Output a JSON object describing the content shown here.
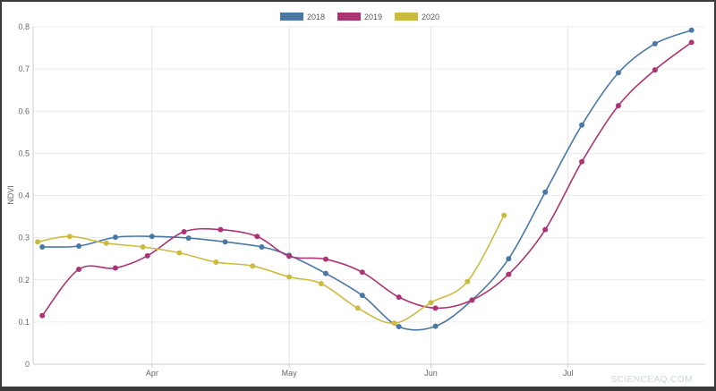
{
  "chart_data": {
    "type": "line",
    "xlabel": "",
    "ylabel": "NDVI",
    "ylim": [
      0,
      0.8
    ],
    "yticks": [
      "0",
      "0.1",
      "0.2",
      "0.3",
      "0.4",
      "0.5",
      "0.6",
      "0.7",
      "0.8"
    ],
    "x_domain": [
      "2020-03-06",
      "2020-07-31"
    ],
    "month_ticks": [
      {
        "label": "Apr",
        "date": "2020-04-01"
      },
      {
        "label": "May",
        "date": "2020-05-01"
      },
      {
        "label": "Jun",
        "date": "2020-06-01"
      },
      {
        "label": "Jul",
        "date": "2020-07-01"
      }
    ],
    "grid": true,
    "legend_position": "top-center",
    "series": [
      {
        "name": "2018",
        "color": "#4a78a5",
        "points": [
          {
            "x": "2020-03-08",
            "y": 0.278
          },
          {
            "x": "2020-03-16",
            "y": 0.28
          },
          {
            "x": "2020-03-24",
            "y": 0.301
          },
          {
            "x": "2020-04-01",
            "y": 0.303
          },
          {
            "x": "2020-04-09",
            "y": 0.299
          },
          {
            "x": "2020-04-17",
            "y": 0.29
          },
          {
            "x": "2020-04-25",
            "y": 0.278
          },
          {
            "x": "2020-05-01",
            "y": 0.258
          },
          {
            "x": "2020-05-09",
            "y": 0.215
          },
          {
            "x": "2020-05-17",
            "y": 0.163
          },
          {
            "x": "2020-05-25",
            "y": 0.089
          },
          {
            "x": "2020-06-02",
            "y": 0.09
          },
          {
            "x": "2020-06-10",
            "y": 0.152
          },
          {
            "x": "2020-06-18",
            "y": 0.25
          },
          {
            "x": "2020-06-26",
            "y": 0.408
          },
          {
            "x": "2020-07-04",
            "y": 0.567
          },
          {
            "x": "2020-07-12",
            "y": 0.691
          },
          {
            "x": "2020-07-20",
            "y": 0.76
          },
          {
            "x": "2020-07-28",
            "y": 0.792
          }
        ]
      },
      {
        "name": "2019",
        "color": "#ac3474",
        "points": [
          {
            "x": "2020-03-08",
            "y": 0.115
          },
          {
            "x": "2020-03-16",
            "y": 0.225
          },
          {
            "x": "2020-03-24",
            "y": 0.228
          },
          {
            "x": "2020-03-31",
            "y": 0.257
          },
          {
            "x": "2020-04-08",
            "y": 0.314
          },
          {
            "x": "2020-04-16",
            "y": 0.319
          },
          {
            "x": "2020-04-24",
            "y": 0.303
          },
          {
            "x": "2020-05-01",
            "y": 0.256
          },
          {
            "x": "2020-05-09",
            "y": 0.249
          },
          {
            "x": "2020-05-17",
            "y": 0.218
          },
          {
            "x": "2020-05-25",
            "y": 0.159
          },
          {
            "x": "2020-06-02",
            "y": 0.133
          },
          {
            "x": "2020-06-10",
            "y": 0.152
          },
          {
            "x": "2020-06-18",
            "y": 0.213
          },
          {
            "x": "2020-06-26",
            "y": 0.319
          },
          {
            "x": "2020-07-04",
            "y": 0.48
          },
          {
            "x": "2020-07-12",
            "y": 0.613
          },
          {
            "x": "2020-07-20",
            "y": 0.698
          },
          {
            "x": "2020-07-28",
            "y": 0.763
          }
        ]
      },
      {
        "name": "2020",
        "color": "#cdbb3f",
        "points": [
          {
            "x": "2020-03-07",
            "y": 0.29
          },
          {
            "x": "2020-03-14",
            "y": 0.303
          },
          {
            "x": "2020-03-22",
            "y": 0.287
          },
          {
            "x": "2020-03-30",
            "y": 0.278
          },
          {
            "x": "2020-04-07",
            "y": 0.264
          },
          {
            "x": "2020-04-15",
            "y": 0.242
          },
          {
            "x": "2020-04-23",
            "y": 0.233
          },
          {
            "x": "2020-05-01",
            "y": 0.207
          },
          {
            "x": "2020-05-08",
            "y": 0.191
          },
          {
            "x": "2020-05-16",
            "y": 0.133
          },
          {
            "x": "2020-05-24",
            "y": 0.097
          },
          {
            "x": "2020-06-01",
            "y": 0.146
          },
          {
            "x": "2020-06-09",
            "y": 0.196
          },
          {
            "x": "2020-06-17",
            "y": 0.353
          }
        ]
      }
    ]
  },
  "watermark": "SCIENCEAQ.COM"
}
